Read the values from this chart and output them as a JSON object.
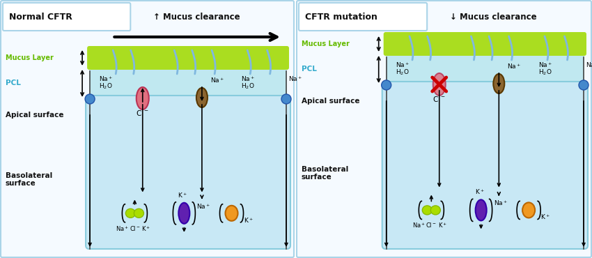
{
  "bg_color": "#ffffff",
  "panel_border": "#aad4e8",
  "panel_bg": "#f5faff",
  "cell_bg": "#c8e8f5",
  "pcl_bg": "#c0e8f0",
  "mucus_color": "#aadd20",
  "title_left": "Normal CFTR",
  "title_right": "CFTR mutation",
  "clearance_up": "↑ Mucus clearance",
  "clearance_down": "↓ Mucus clearance",
  "mucus_label": "Mucus Layer",
  "pcl_label": "PCL",
  "apical_label": "Apical surface",
  "basal_label": "Basolateral\nsurface",
  "cftr_pink": "#e07080",
  "cftr_brown": "#8b6530",
  "pump_purple": "#6020b0",
  "pump_green": "#aadd00",
  "pump_orange": "#f09820",
  "cilium_color": "#80b8e0",
  "channel_blue": "#4488cc",
  "text_dark": "#111111",
  "arrow_color": "#111111"
}
